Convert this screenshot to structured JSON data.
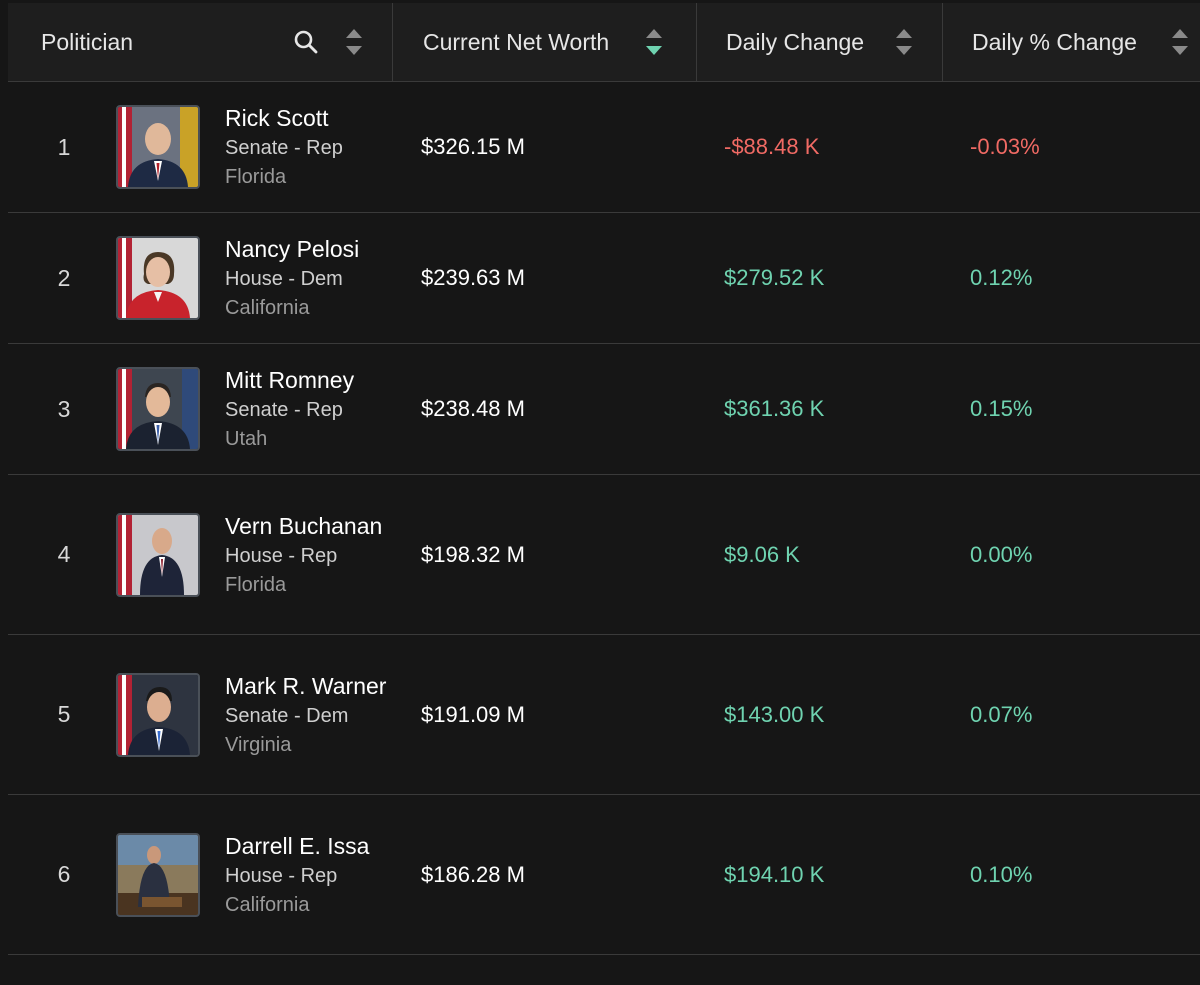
{
  "header": {
    "politician_label": "Politician",
    "networth_label": "Current Net Worth",
    "daily_label": "Daily Change",
    "pct_label": "Daily % Change"
  },
  "colors": {
    "positive": "#6fd3b0",
    "negative": "#f06a64",
    "active_sort": "#6fd3b0"
  },
  "rows": [
    {
      "rank": "1",
      "name": "Rick Scott",
      "chamber": "Senate - Rep",
      "state": "Florida",
      "networth": "$326.15 M",
      "daily": "-$88.48 K",
      "pct": "-0.03%",
      "trend": "neg"
    },
    {
      "rank": "2",
      "name": "Nancy Pelosi",
      "chamber": "House - Dem",
      "state": "California",
      "networth": "$239.63 M",
      "daily": "$279.52 K",
      "pct": "0.12%",
      "trend": "pos"
    },
    {
      "rank": "3",
      "name": "Mitt Romney",
      "chamber": "Senate - Rep",
      "state": "Utah",
      "networth": "$238.48 M",
      "daily": "$361.36 K",
      "pct": "0.15%",
      "trend": "pos"
    },
    {
      "rank": "4",
      "name": "Vern Buchanan",
      "chamber": "House - Rep",
      "state": "Florida",
      "networth": "$198.32 M",
      "daily": "$9.06 K",
      "pct": "0.00%",
      "trend": "pos"
    },
    {
      "rank": "5",
      "name": "Mark R. Warner",
      "chamber": "Senate - Dem",
      "state": "Virginia",
      "networth": "$191.09 M",
      "daily": "$143.00 K",
      "pct": "0.07%",
      "trend": "pos"
    },
    {
      "rank": "6",
      "name": "Darrell E. Issa",
      "chamber": "House - Rep",
      "state": "California",
      "networth": "$186.28 M",
      "daily": "$194.10 K",
      "pct": "0.10%",
      "trend": "pos"
    }
  ]
}
